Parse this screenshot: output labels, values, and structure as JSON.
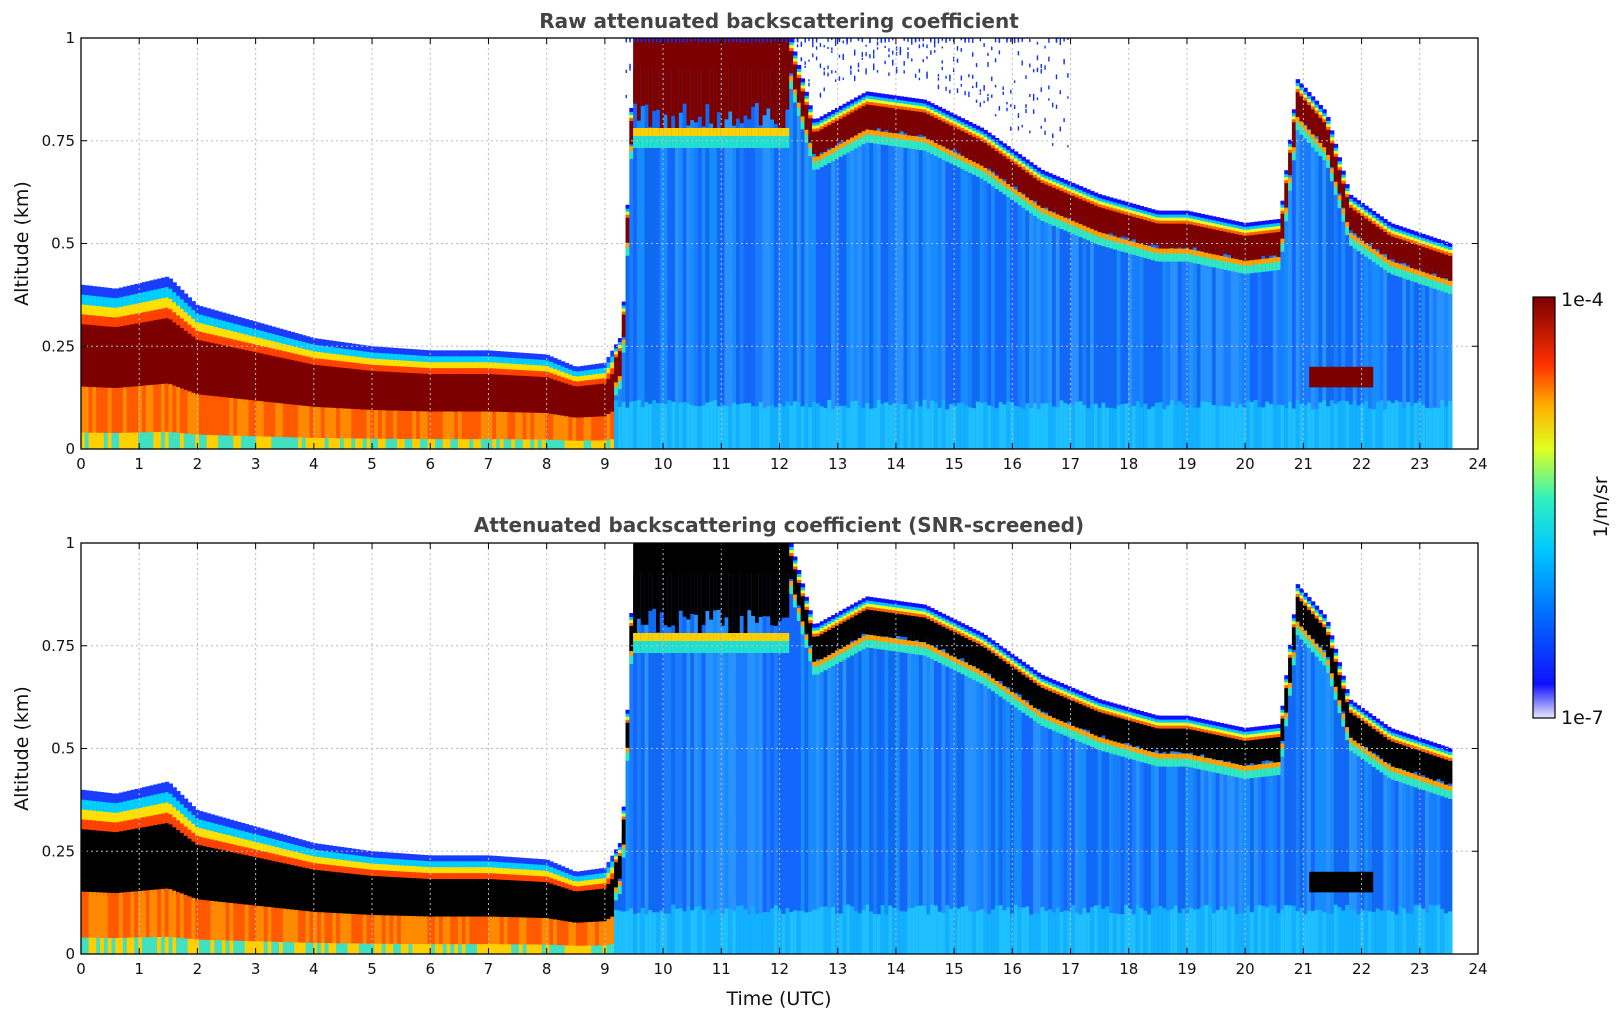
{
  "chart_data": [
    {
      "type": "heatmap",
      "title": "Raw attenuated backscattering coefficient",
      "xlabel": "",
      "ylabel": "Altitude (km)",
      "xlim": [
        0,
        24
      ],
      "ylim": [
        0,
        1
      ],
      "x_ticks": [
        "0",
        "1",
        "2",
        "3",
        "4",
        "5",
        "6",
        "7",
        "8",
        "9",
        "10",
        "11",
        "12",
        "13",
        "14",
        "15",
        "16",
        "17",
        "18",
        "19",
        "20",
        "21",
        "22",
        "23",
        "24"
      ],
      "y_ticks": [
        "0",
        "0.25",
        "0.5",
        "0.75",
        "1"
      ],
      "grid": true,
      "data_end_time": 23.55,
      "max_layer_top_km": [
        {
          "t": 0,
          "z": 0.4
        },
        {
          "t": 0.6,
          "z": 0.39
        },
        {
          "t": 1.5,
          "z": 0.42
        },
        {
          "t": 2.0,
          "z": 0.35
        },
        {
          "t": 3.0,
          "z": 0.31
        },
        {
          "t": 4.0,
          "z": 0.27
        },
        {
          "t": 5.0,
          "z": 0.25
        },
        {
          "t": 6.0,
          "z": 0.24
        },
        {
          "t": 7.0,
          "z": 0.24
        },
        {
          "t": 8.0,
          "z": 0.23
        },
        {
          "t": 8.5,
          "z": 0.2
        },
        {
          "t": 9.0,
          "z": 0.21
        },
        {
          "t": 9.3,
          "z": 0.28
        },
        {
          "t": 9.5,
          "z": 1.0
        },
        {
          "t": 11.0,
          "z": 1.0
        },
        {
          "t": 12.2,
          "z": 1.0
        },
        {
          "t": 12.6,
          "z": 0.8
        },
        {
          "t": 13.5,
          "z": 0.87
        },
        {
          "t": 14.5,
          "z": 0.85
        },
        {
          "t": 15.5,
          "z": 0.78
        },
        {
          "t": 16.5,
          "z": 0.68
        },
        {
          "t": 17.5,
          "z": 0.62
        },
        {
          "t": 18.5,
          "z": 0.58
        },
        {
          "t": 19.0,
          "z": 0.58
        },
        {
          "t": 20.0,
          "z": 0.55
        },
        {
          "t": 20.6,
          "z": 0.56
        },
        {
          "t": 20.9,
          "z": 0.9
        },
        {
          "t": 21.4,
          "z": 0.82
        },
        {
          "t": 21.8,
          "z": 0.62
        },
        {
          "t": 22.5,
          "z": 0.55
        },
        {
          "t": 23.55,
          "z": 0.5
        }
      ]
    },
    {
      "type": "heatmap",
      "title": "Attenuated backscattering coefficient (SNR-screened)",
      "xlabel": "Time (UTC)",
      "ylabel": "Altitude (km)",
      "xlim": [
        0,
        24
      ],
      "ylim": [
        0,
        1
      ],
      "x_ticks": [
        "0",
        "1",
        "2",
        "3",
        "4",
        "5",
        "6",
        "7",
        "8",
        "9",
        "10",
        "11",
        "12",
        "13",
        "14",
        "15",
        "16",
        "17",
        "18",
        "19",
        "20",
        "21",
        "22",
        "23",
        "24"
      ],
      "y_ticks": [
        "0",
        "0.25",
        "0.5",
        "0.75",
        "1"
      ],
      "grid": true,
      "saturated_color": "#000000",
      "data_end_time": 23.55
    }
  ],
  "colorbar": {
    "label": "1/m/sr",
    "max_label": "1e-4",
    "min_label": "1e-7",
    "scale": "log",
    "colormap": "jet",
    "colors": [
      "#e6e6fa",
      "#0000ff",
      "#00a0ff",
      "#00e0d0",
      "#ffff00",
      "#ff8000",
      "#ff0000",
      "#800000"
    ]
  }
}
